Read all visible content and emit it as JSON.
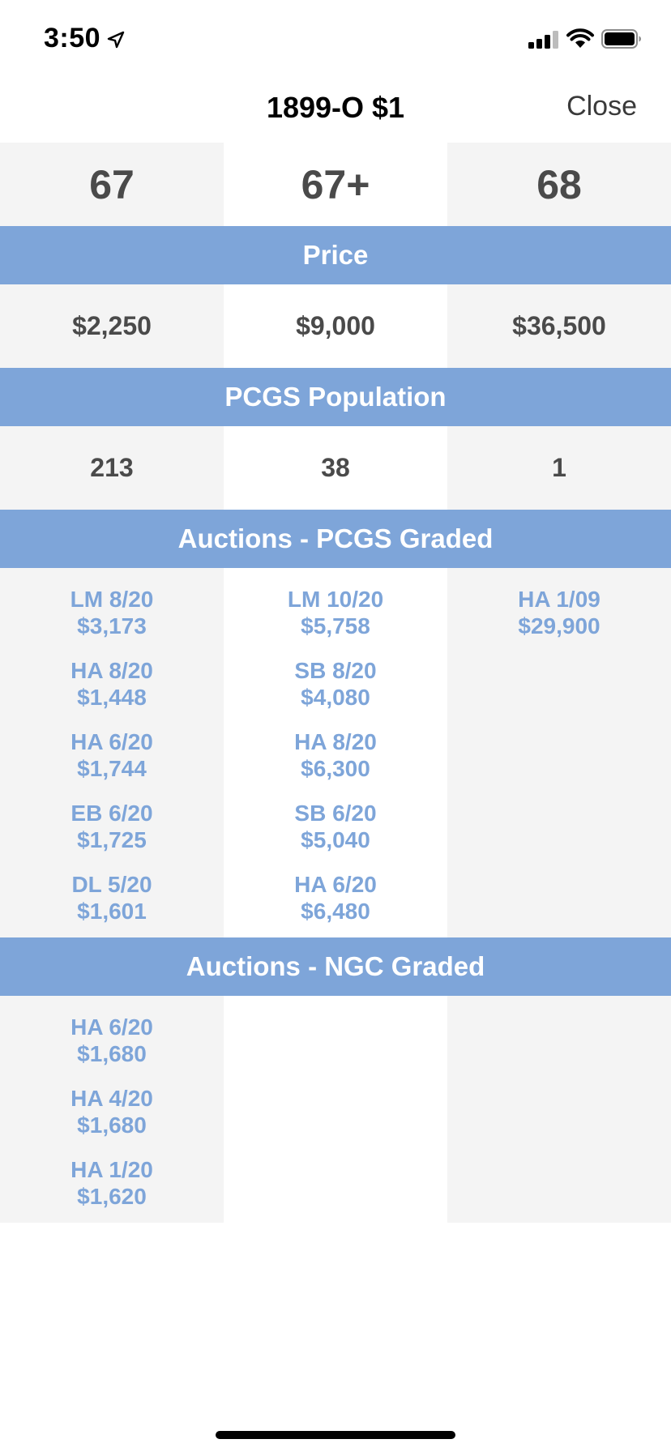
{
  "status_bar": {
    "time": "3:50"
  },
  "header": {
    "title": "1899-O $1",
    "close_label": "Close"
  },
  "grades": [
    "67",
    "67+",
    "68"
  ],
  "sections": {
    "price": {
      "label": "Price",
      "values": [
        "$2,250",
        "$9,000",
        "$36,500"
      ]
    },
    "population": {
      "label": "PCGS Population",
      "values": [
        "213",
        "38",
        "1"
      ]
    },
    "pcgs_auctions": {
      "label": "Auctions - PCGS Graded",
      "columns": [
        [
          {
            "line1": "LM 8/20",
            "line2": "$3,173"
          },
          {
            "line1": "HA 8/20",
            "line2": "$1,448"
          },
          {
            "line1": "HA 6/20",
            "line2": "$1,744"
          },
          {
            "line1": "EB 6/20",
            "line2": "$1,725"
          },
          {
            "line1": "DL 5/20",
            "line2": "$1,601"
          }
        ],
        [
          {
            "line1": "LM 10/20",
            "line2": "$5,758"
          },
          {
            "line1": "SB 8/20",
            "line2": "$4,080"
          },
          {
            "line1": "HA 8/20",
            "line2": "$6,300"
          },
          {
            "line1": "SB 6/20",
            "line2": "$5,040"
          },
          {
            "line1": "HA 6/20",
            "line2": "$6,480"
          }
        ],
        [
          {
            "line1": "HA 1/09",
            "line2": "$29,900"
          }
        ]
      ]
    },
    "ngc_auctions": {
      "label": "Auctions - NGC Graded",
      "columns": [
        [
          {
            "line1": "HA 6/20",
            "line2": "$1,680"
          },
          {
            "line1": "HA 4/20",
            "line2": "$1,680"
          },
          {
            "line1": "HA 1/20",
            "line2": "$1,620"
          }
        ],
        [],
        []
      ]
    }
  }
}
